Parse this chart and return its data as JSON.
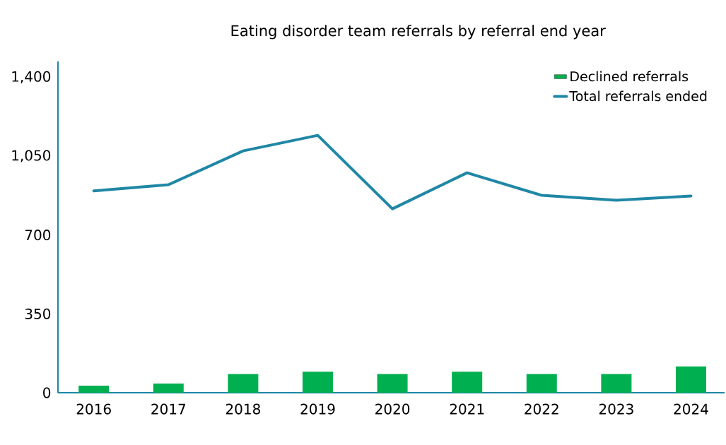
{
  "chart_data": {
    "type": "bar",
    "title": "Eating disorder team referrals by referral end year",
    "categories": [
      "2016",
      "2017",
      "2018",
      "2019",
      "2020",
      "2021",
      "2022",
      "2023",
      "2024"
    ],
    "series": [
      {
        "name": "Declined referrals",
        "color": "#00b050",
        "values": [
          31,
          41,
          83,
          93,
          83,
          93,
          83,
          83,
          117
        ]
      },
      {
        "name": "Total referrals ended",
        "type": "line",
        "color": "#1f87a5",
        "values": [
          896,
          923,
          1073,
          1142,
          816,
          976,
          876,
          854,
          873
        ]
      }
    ],
    "ylim": [
      0,
      1470
    ],
    "yticks": [
      0,
      350,
      700,
      {
        "value": 1050,
        "label": "1,050"
      },
      {
        "value": 1400,
        "label": "1,400"
      }
    ],
    "legend": "top right"
  }
}
